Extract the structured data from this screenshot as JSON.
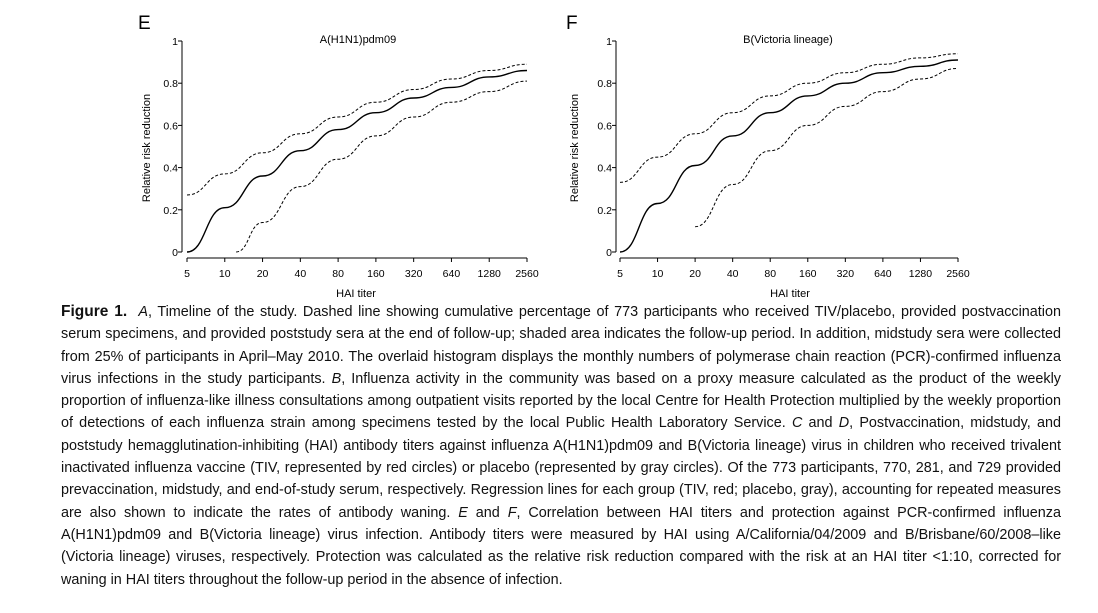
{
  "figure": {
    "panels": [
      {
        "letter": "E",
        "title": "A(H1N1)pdm09",
        "xlabel": "HAI titer",
        "ylabel": "Relative risk reduction"
      },
      {
        "letter": "F",
        "title": "B(Victoria lineage)",
        "xlabel": "HAI titer",
        "ylabel": "Relative risk reduction"
      }
    ]
  },
  "chart_data": [
    {
      "type": "line",
      "title": "A(H1N1)pdm09",
      "xlabel": "HAI titer",
      "ylabel": "Relative risk reduction",
      "x_scale": "log2",
      "xlim": [
        5,
        2560
      ],
      "ylim": [
        0,
        1
      ],
      "xticks": [
        "5",
        "10",
        "20",
        "40",
        "80",
        "160",
        "320",
        "640",
        "1280",
        "2560"
      ],
      "yticks": [
        "0",
        "0.2",
        "0.4",
        "0.6",
        "0.8",
        "1"
      ],
      "x": [
        5,
        10,
        20,
        40,
        80,
        160,
        320,
        640,
        1280,
        2560
      ],
      "series": [
        {
          "style": "solid",
          "values": [
            0.0,
            0.21,
            0.36,
            0.48,
            0.58,
            0.66,
            0.73,
            0.78,
            0.83,
            0.86
          ]
        },
        {
          "style": "dashed",
          "values": [
            0.27,
            0.37,
            0.47,
            0.56,
            0.64,
            0.71,
            0.77,
            0.82,
            0.86,
            0.89
          ]
        },
        {
          "style": "dashed",
          "values": [
            null,
            -0.06,
            0.14,
            0.31,
            0.44,
            0.55,
            0.64,
            0.71,
            0.76,
            0.81
          ]
        }
      ],
      "grid": false
    },
    {
      "type": "line",
      "title": "B(Victoria lineage)",
      "xlabel": "HAI titer",
      "ylabel": "Relative risk reduction",
      "x_scale": "log2",
      "xlim": [
        5,
        2560
      ],
      "ylim": [
        0,
        1
      ],
      "xticks": [
        "5",
        "10",
        "20",
        "40",
        "80",
        "160",
        "320",
        "640",
        "1280",
        "2560"
      ],
      "yticks": [
        "0",
        "0.2",
        "0.4",
        "0.6",
        "0.8",
        "1"
      ],
      "x": [
        5,
        10,
        20,
        40,
        80,
        160,
        320,
        640,
        1280,
        2560
      ],
      "series": [
        {
          "style": "solid",
          "values": [
            0.0,
            0.23,
            0.41,
            0.55,
            0.66,
            0.74,
            0.8,
            0.85,
            0.88,
            0.91
          ]
        },
        {
          "style": "dashed",
          "values": [
            0.33,
            0.45,
            0.56,
            0.66,
            0.74,
            0.8,
            0.85,
            0.89,
            0.92,
            0.94
          ]
        },
        {
          "style": "dashed",
          "values": [
            null,
            null,
            0.12,
            0.32,
            0.48,
            0.6,
            0.69,
            0.76,
            0.82,
            0.87
          ]
        }
      ],
      "grid": false
    }
  ],
  "caption": {
    "label": "Figure 1.",
    "segments": [
      {
        "text": "A",
        "italic": true
      },
      {
        "text": ", Timeline of the study. Dashed line showing cumulative percentage of 773 participants who received TIV/placebo, provided postvaccination serum specimens, and provided poststudy sera at the end of follow-up; shaded area indicates the follow-up period. In addition, midstudy sera were collected from 25% of participants in April–May 2010. The overlaid histogram displays the monthly numbers of polymerase chain reaction (PCR)-confirmed influenza virus infections in the study participants. "
      },
      {
        "text": "B",
        "italic": true
      },
      {
        "text": ", Influenza activity in the community was based on a proxy measure calculated as the product of the weekly proportion of influenza-like illness consultations among outpatient visits reported by the local Centre for Health Protection multiplied by the weekly proportion of detections of each influenza strain among specimens tested by the local Public Health Laboratory Service. "
      },
      {
        "text": "C",
        "italic": true
      },
      {
        "text": " and "
      },
      {
        "text": "D",
        "italic": true
      },
      {
        "text": ", Postvaccination, midstudy, and poststudy hemagglutination-inhibiting (HAI) antibody titers against influenza A(H1N1)pdm09 and B(Victoria lineage) virus in children who received trivalent inactivated influenza vaccine (TIV, represented by red circles) or placebo (represented by gray circles). Of the 773 participants, 770, 281, and 729 provided prevaccination, midstudy, and end-of-study serum, respectively. Regression lines for each group (TIV, red; placebo, gray), accounting for repeated measures are also shown to indicate the rates of antibody waning. "
      },
      {
        "text": "E",
        "italic": true
      },
      {
        "text": " and "
      },
      {
        "text": "F",
        "italic": true
      },
      {
        "text": ", Correlation between HAI titers and protection against PCR-confirmed influenza A(H1N1)pdm09 and B(Victoria lineage) virus infection. Antibody titers were measured by HAI using A/California/04/2009 and B/Brisbane/60/2008–like (Victoria lineage) viruses, respectively. Protection was calculated as the relative risk reduction compared with the risk at an HAI titer <1:10, corrected for waning in HAI titers throughout the follow-up period in the absence of infection."
      }
    ]
  }
}
